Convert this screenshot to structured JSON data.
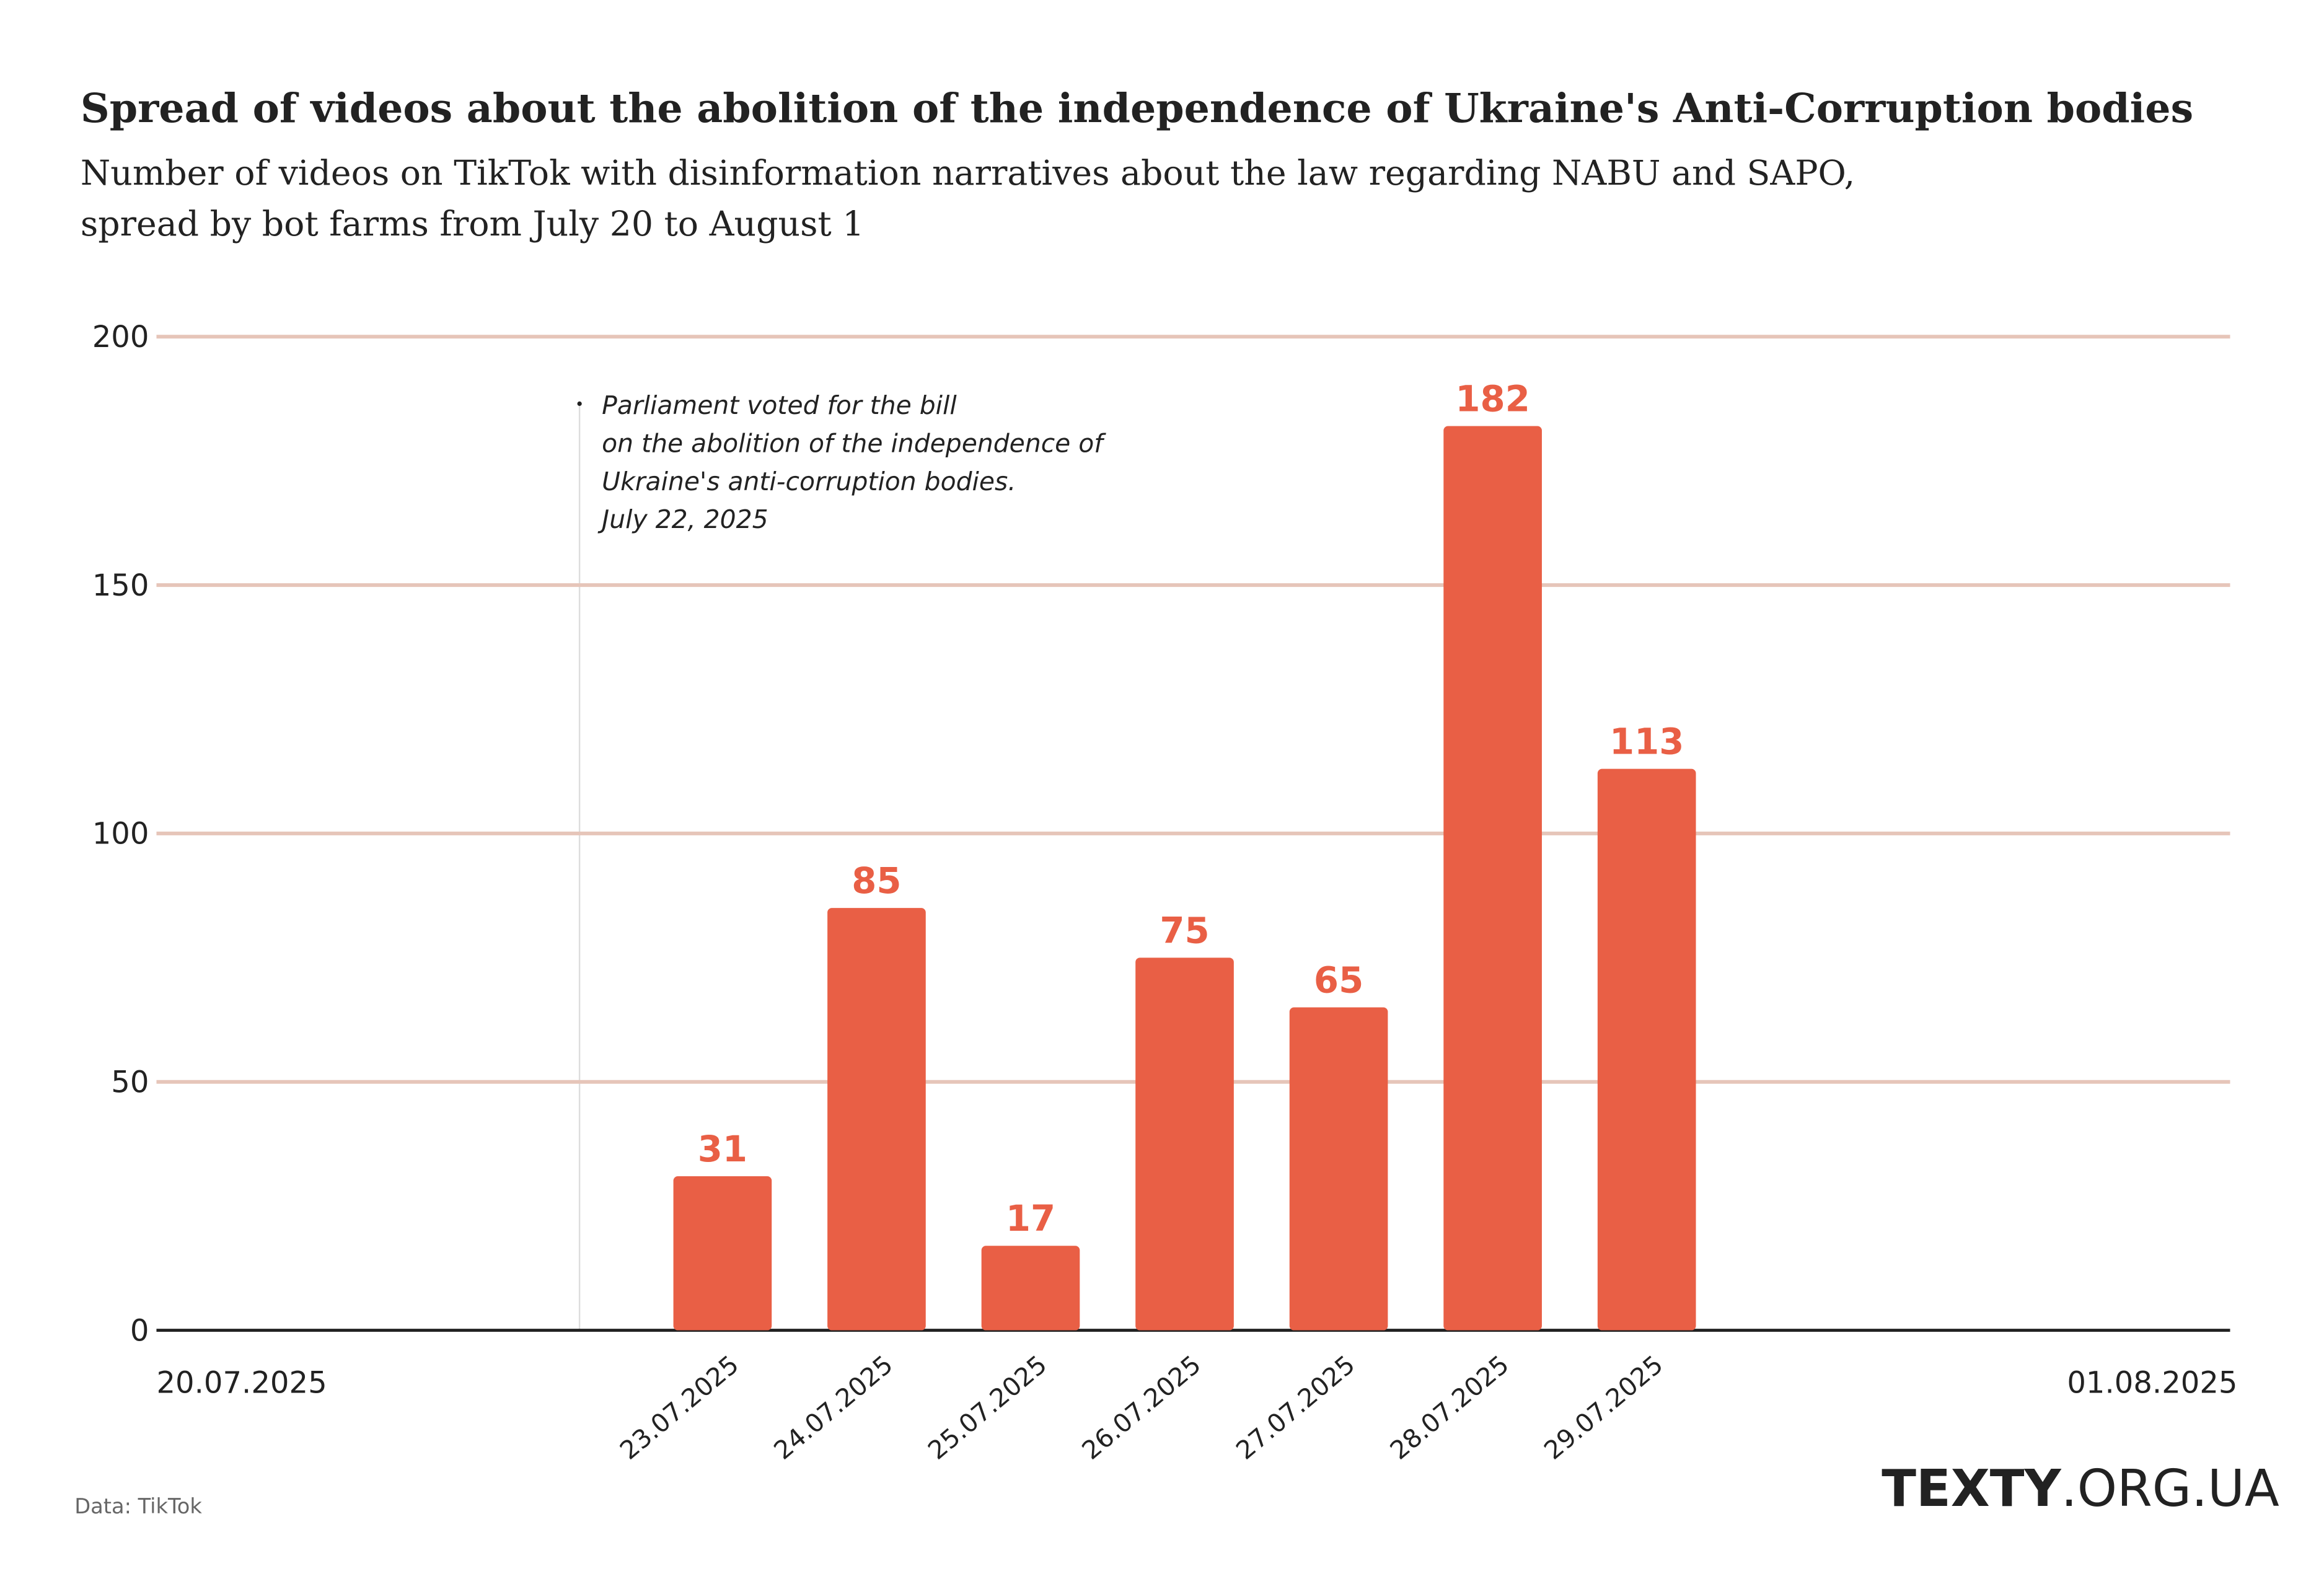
{
  "chart_data": {
    "type": "bar",
    "title": "Spread of videos about the abolition of the independence of Ukraine's Anti-Corruption bodies",
    "subtitle": [
      "Number of videos on TikTok with disinformation narratives about the law regarding NABU and SAPO,",
      "spread by bot farms from July 20 to August 1"
    ],
    "categories": [
      "23.07.2025",
      "24.07.2025",
      "25.07.2025",
      "26.07.2025",
      "27.07.2025",
      "28.07.2025",
      "29.07.2025"
    ],
    "values": [
      31,
      85,
      17,
      75,
      65,
      182,
      113
    ],
    "color": "#e95f45",
    "x_range_labels": [
      "20.07.2025",
      "01.08.2025"
    ],
    "ylim": [
      0,
      200
    ],
    "yticks": [
      0,
      50,
      100,
      150,
      200
    ],
    "grid": true,
    "annotation": [
      "Parliament voted for the bill",
      "on the abolition of the independence of",
      "Ukraine's anti-corruption bodies.",
      "July 22, 2025"
    ],
    "source": "Data: TikTok",
    "logo": [
      "TEXTY",
      ".ORG.UA"
    ]
  }
}
